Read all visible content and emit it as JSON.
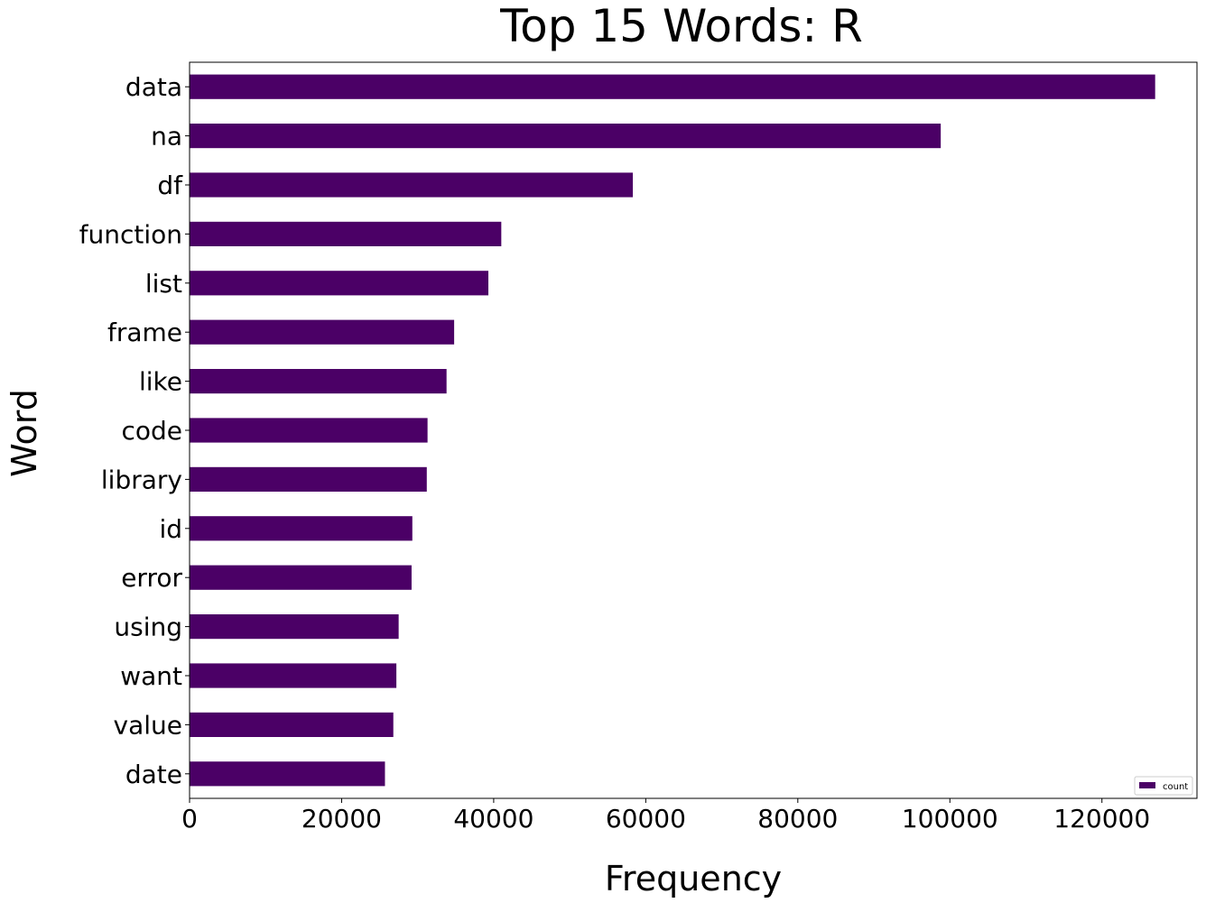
{
  "chart_data": {
    "type": "bar",
    "orientation": "horizontal",
    "title": "Top 15 Words: R",
    "xlabel": "Frequency",
    "ylabel": "Word",
    "xlim": [
      0,
      132500
    ],
    "x_ticks": [
      0,
      20000,
      40000,
      60000,
      80000,
      100000,
      120000
    ],
    "grid": false,
    "legend": {
      "position": "lower-right",
      "entries": [
        "count"
      ]
    },
    "bar_color": "#4b0066",
    "categories": [
      "data",
      "na",
      "df",
      "function",
      "list",
      "frame",
      "like",
      "code",
      "library",
      "id",
      "error",
      "using",
      "want",
      "value",
      "date"
    ],
    "series": [
      {
        "name": "count",
        "values": [
          127000,
          98800,
          58300,
          41000,
          39300,
          34800,
          33800,
          31300,
          31200,
          29300,
          29200,
          27500,
          27200,
          26800,
          25700
        ]
      }
    ]
  }
}
